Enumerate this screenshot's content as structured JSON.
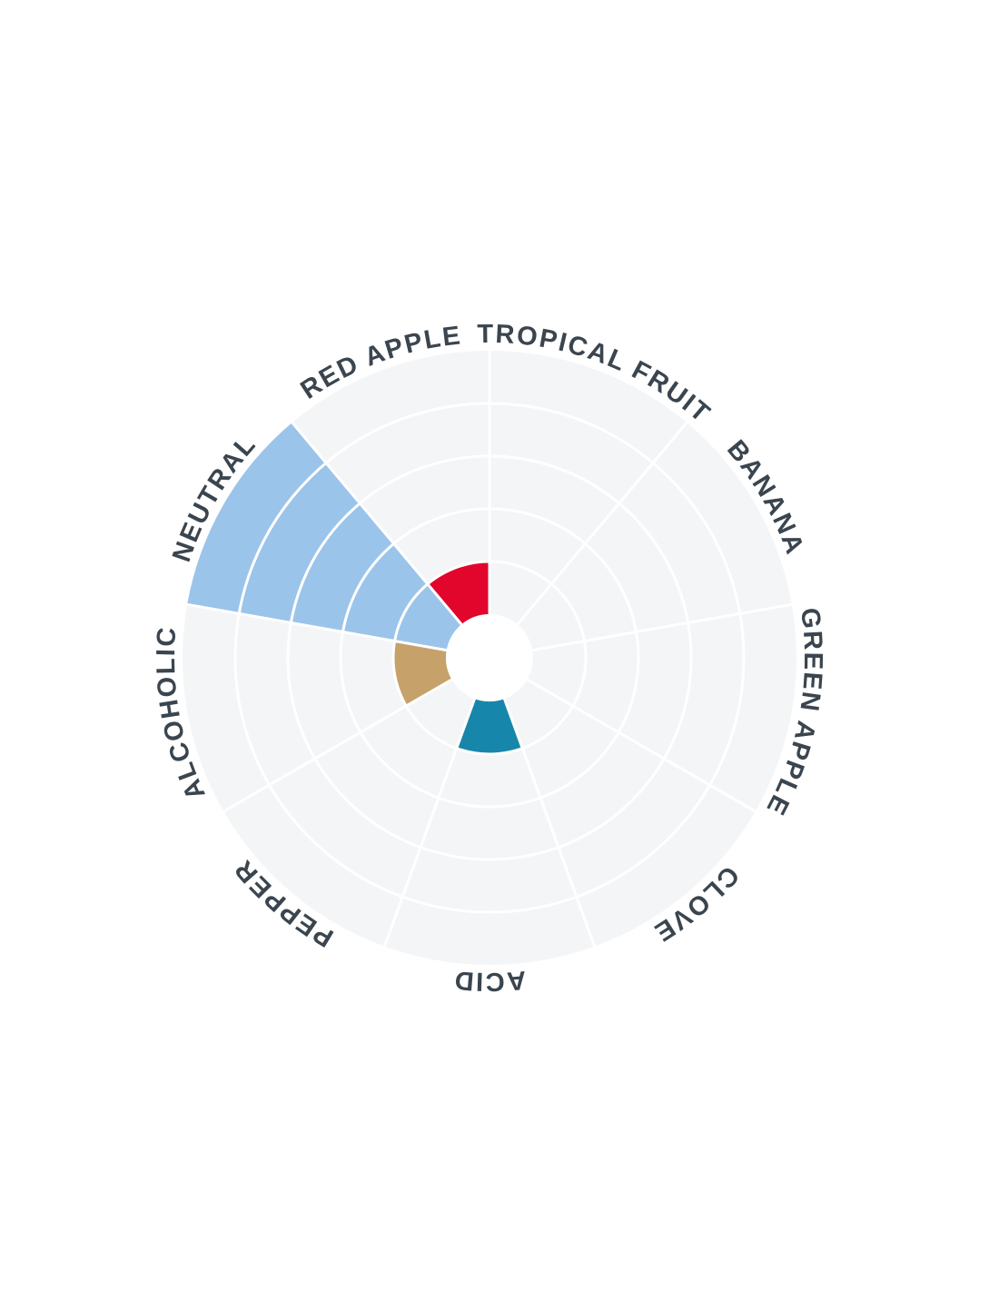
{
  "page": {
    "background_color": "#ffffff"
  },
  "chart_data": {
    "type": "bar",
    "variant": "polar-sector-wheel",
    "title": "",
    "rings": 5,
    "value_range": [
      0,
      5
    ],
    "grid": true,
    "start_angle_deg": 0,
    "sector_span_deg": 40,
    "categories": [
      "TROPICAL FRUIT",
      "BANANA",
      "GREEN APPLE",
      "CLOVE",
      "ACID",
      "PEPPER",
      "ALCOHOLIC",
      "NEUTRAL",
      "RED APPLE"
    ],
    "values": [
      0,
      0,
      0,
      0,
      1,
      0,
      1,
      5,
      1
    ],
    "sector_colors": [
      null,
      null,
      null,
      null,
      "#1786ab",
      null,
      "#c6a26a",
      "#9bc4ea",
      "#e2062c"
    ],
    "styles": {
      "disc_fill": "#f4f5f6",
      "grid_line_color": "#ffffff",
      "hole_fill": "#ffffff",
      "label_color": "#3a454f"
    }
  }
}
